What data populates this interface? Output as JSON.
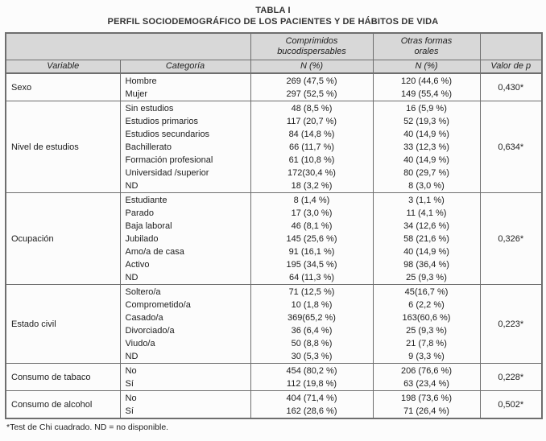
{
  "page": {
    "title": "TABLA I",
    "subtitle": "PERFIL SOCIODEMOGRÁFICO DE LOS PACIENTES Y DE HÁBITOS DE VIDA",
    "footnote": "*Test de Chi cuadrado. ND = no disponible."
  },
  "colors": {
    "header_bg": "#d8d8d8",
    "border": "#6e6e6e",
    "text": "#1d1d1d"
  },
  "table": {
    "header": {
      "col_comprimidos": "Comprimidos bucodispersables",
      "col_otras": "Otras formas orales",
      "col_variable": "Variable",
      "col_categoria": "Categoría",
      "col_n_pct": "N (%)",
      "col_valor_p": "Valor de p"
    },
    "groups": [
      {
        "variable": "Sexo",
        "p": "0,430*",
        "rows": [
          {
            "categoria": "Hombre",
            "comprimidos": "269 (47,5 %)",
            "otras": "120 (44,6 %)"
          },
          {
            "categoria": "Mujer",
            "comprimidos": "297 (52,5 %)",
            "otras": "149 (55,4 %)"
          }
        ]
      },
      {
        "variable": "Nivel de estudios",
        "p": "0,634*",
        "rows": [
          {
            "categoria": "Sin estudios",
            "comprimidos": "48 (8,5 %)",
            "otras": "16 (5,9 %)"
          },
          {
            "categoria": "Estudios primarios",
            "comprimidos": "117 (20,7 %)",
            "otras": "52 (19,3 %)"
          },
          {
            "categoria": "Estudios secundarios",
            "comprimidos": "84 (14,8 %)",
            "otras": "40 (14,9 %)"
          },
          {
            "categoria": "Bachillerato",
            "comprimidos": "66 (11,7 %)",
            "otras": "33 (12,3 %)"
          },
          {
            "categoria": "Formación profesional",
            "comprimidos": "61 (10,8 %)",
            "otras": "40 (14,9 %)"
          },
          {
            "categoria": "Universidad /superior",
            "comprimidos": "172(30,4 %)",
            "otras": "80 (29,7 %)"
          },
          {
            "categoria": "ND",
            "comprimidos": "18 (3,2 %)",
            "otras": "8 (3,0 %)"
          }
        ]
      },
      {
        "variable": "Ocupación",
        "p": "0,326*",
        "rows": [
          {
            "categoria": "Estudiante",
            "comprimidos": "8 (1,4 %)",
            "otras": "3 (1,1 %)"
          },
          {
            "categoria": "Parado",
            "comprimidos": "17 (3,0 %)",
            "otras": "11 (4,1 %)"
          },
          {
            "categoria": "Baja laboral",
            "comprimidos": "46 (8,1 %)",
            "otras": "34 (12,6 %)"
          },
          {
            "categoria": "Jubilado",
            "comprimidos": "145 (25,6 %)",
            "otras": "58 (21,6 %)"
          },
          {
            "categoria": "Amo/a de casa",
            "comprimidos": "91 (16,1 %)",
            "otras": "40 (14,9 %)"
          },
          {
            "categoria": "Activo",
            "comprimidos": "195 (34,5 %)",
            "otras": "98 (36,4 %)"
          },
          {
            "categoria": "ND",
            "comprimidos": "64 (11,3 %)",
            "otras": "25 (9,3 %)"
          }
        ]
      },
      {
        "variable": "Estado civil",
        "p": "0,223*",
        "rows": [
          {
            "categoria": "Soltero/a",
            "comprimidos": "71 (12,5 %)",
            "otras": "45(16,7 %)"
          },
          {
            "categoria": "Comprometido/a",
            "comprimidos": "10 (1,8 %)",
            "otras": "6 (2,2 %)"
          },
          {
            "categoria": "Casado/a",
            "comprimidos": "369(65,2 %)",
            "otras": "163(60,6 %)"
          },
          {
            "categoria": "Divorciado/a",
            "comprimidos": "36 (6,4 %)",
            "otras": "25 (9,3 %)"
          },
          {
            "categoria": "Viudo/a",
            "comprimidos": "50 (8,8 %)",
            "otras": "21 (7,8 %)"
          },
          {
            "categoria": "ND",
            "comprimidos": "30 (5,3 %)",
            "otras": "9 (3,3 %)"
          }
        ]
      },
      {
        "variable": "Consumo de tabaco",
        "p": "0,228*",
        "rows": [
          {
            "categoria": "No",
            "comprimidos": "454 (80,2 %)",
            "otras": "206 (76,6 %)"
          },
          {
            "categoria": "Sí",
            "comprimidos": "112 (19,8 %)",
            "otras": "63 (23,4 %)"
          }
        ]
      },
      {
        "variable": "Consumo de alcohol",
        "p": "0,502*",
        "rows": [
          {
            "categoria": "No",
            "comprimidos": "404 (71,4 %)",
            "otras": "198 (73,6 %)"
          },
          {
            "categoria": "Sí",
            "comprimidos": "162 (28,6 %)",
            "otras": "71 (26,4 %)"
          }
        ]
      }
    ]
  }
}
